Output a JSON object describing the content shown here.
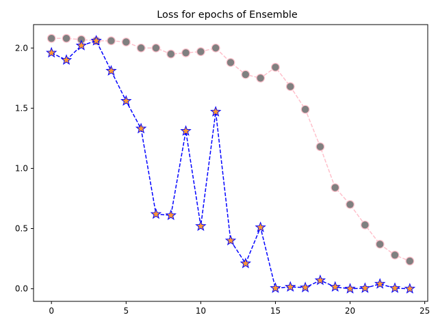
{
  "chart_data": {
    "type": "line",
    "title": "Loss for epochs of Ensemble",
    "xlabel": "",
    "ylabel": "",
    "xlim": [
      -1.2,
      25.2
    ],
    "ylim": [
      -0.1045,
      2.1945
    ],
    "xticks": [
      0,
      5,
      10,
      15,
      20,
      25
    ],
    "xtick_labels": [
      "0",
      "5",
      "10",
      "15",
      "20",
      "25"
    ],
    "yticks": [
      0.0,
      0.5,
      1.0,
      1.5,
      2.0
    ],
    "ytick_labels": [
      "0.0",
      "0.5",
      "1.0",
      "1.5",
      "2.0"
    ],
    "grid": false,
    "legend": "none",
    "x": [
      0,
      1,
      2,
      3,
      4,
      5,
      6,
      7,
      8,
      9,
      10,
      11,
      12,
      13,
      14,
      15,
      16,
      17,
      18,
      19,
      20,
      21,
      22,
      23,
      24
    ],
    "series": [
      {
        "line_style": "dashed",
        "line_color": "#ffc0cb",
        "marker": "circle",
        "marker_face": "#808080",
        "marker_edge": "#ffc0cb",
        "values": [
          2.08,
          2.08,
          2.07,
          2.06,
          2.06,
          2.05,
          2.0,
          2.0,
          1.95,
          1.96,
          1.97,
          2.0,
          1.88,
          1.78,
          1.75,
          1.84,
          1.68,
          1.49,
          1.18,
          0.84,
          0.7,
          0.53,
          0.37,
          0.28,
          0.23
        ]
      },
      {
        "line_style": "dashed",
        "line_color": "#0000ff",
        "marker": "star",
        "marker_face": "#ff9933",
        "marker_edge": "#0000ff",
        "values": [
          1.96,
          1.9,
          2.02,
          2.06,
          1.81,
          1.56,
          1.33,
          0.62,
          0.61,
          1.31,
          0.52,
          1.47,
          0.4,
          0.21,
          0.51,
          0.005,
          0.015,
          0.01,
          0.07,
          0.015,
          0.0,
          0.005,
          0.04,
          0.005,
          0.0
        ]
      }
    ]
  }
}
